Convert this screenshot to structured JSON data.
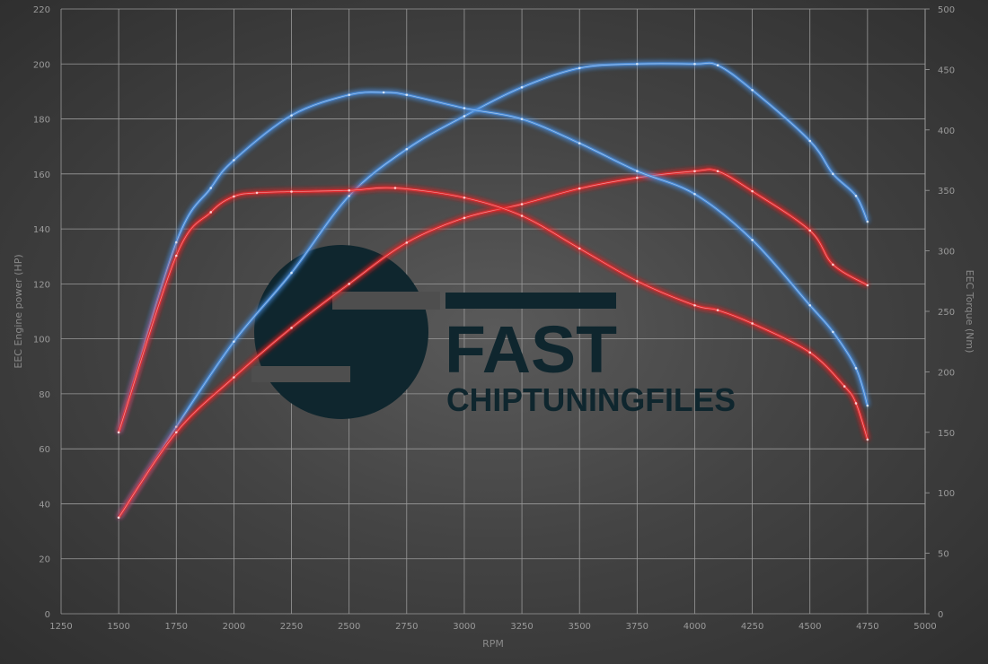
{
  "chart_data": {
    "type": "line",
    "xlabel": "RPM",
    "ylabel_left": "EEC Engine power (HP)",
    "ylabel_right": "EEC Torque (Nm)",
    "xlim": [
      1250,
      5000
    ],
    "xticks": [
      1250,
      1500,
      1750,
      2000,
      2250,
      2500,
      2750,
      3000,
      3250,
      3500,
      3750,
      4000,
      4250,
      4500,
      4750,
      5000
    ],
    "ylim_left": [
      0,
      220
    ],
    "yticks_left": [
      0,
      20,
      40,
      60,
      80,
      100,
      120,
      140,
      160,
      180,
      200,
      220
    ],
    "ylim_right": [
      0,
      500
    ],
    "yticks_right": [
      0,
      50,
      100,
      150,
      200,
      250,
      300,
      350,
      400,
      450,
      500
    ],
    "grid": true,
    "series": [
      {
        "axis": "left",
        "color": "#4a8fe0",
        "x": [
          1500,
          1750,
          2000,
          2250,
          2500,
          2750,
          3000,
          3250,
          3500,
          3750,
          4000,
          4100,
          4250,
          4500,
          4600,
          4700,
          4750
        ],
        "values": [
          35,
          68,
          99,
          124,
          152,
          169,
          181,
          191.5,
          198.5,
          200,
          200,
          199.5,
          190.5,
          172,
          160,
          152,
          142.6
        ]
      },
      {
        "axis": "left",
        "color": "#e8282a",
        "x": [
          1500,
          1750,
          2000,
          2250,
          2500,
          2750,
          3000,
          3250,
          3500,
          3750,
          4000,
          4100,
          4250,
          4500,
          4600,
          4750
        ],
        "values": [
          35,
          66,
          86,
          104,
          120,
          135,
          144,
          149,
          154.7,
          158.6,
          161,
          161,
          153.7,
          139.4,
          127,
          119.5
        ]
      },
      {
        "axis": "right",
        "color": "#4a8fe0",
        "x": [
          1500,
          1750,
          1900,
          2000,
          2250,
          2500,
          2650,
          2750,
          3000,
          3250,
          3500,
          3750,
          4000,
          4250,
          4500,
          4600,
          4700,
          4750
        ],
        "values": [
          150,
          307,
          352,
          375,
          412,
          429,
          431,
          429,
          418,
          409,
          389,
          366,
          347,
          309,
          255,
          233,
          203,
          172
        ]
      },
      {
        "axis": "right",
        "color": "#e8282a",
        "x": [
          1500,
          1750,
          1900,
          2000,
          2100,
          2250,
          2500,
          2700,
          3000,
          3250,
          3500,
          3750,
          4000,
          4100,
          4250,
          4500,
          4650,
          4700,
          4750
        ],
        "values": [
          150,
          296,
          332,
          345,
          348,
          349,
          350,
          352,
          344,
          329,
          302,
          275,
          255,
          251,
          240,
          216,
          188,
          174,
          144
        ]
      }
    ]
  },
  "logo": {
    "word": "FAST",
    "sub": "CHIPTUNINGFILES",
    "color": "#0f262e"
  }
}
